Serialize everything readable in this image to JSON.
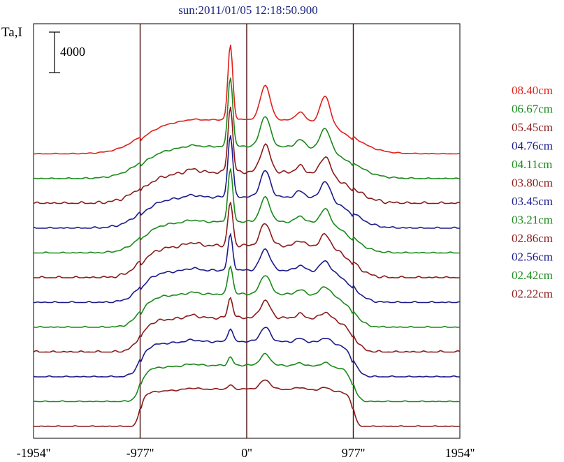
{
  "chart_data": {
    "type": "line",
    "title": "sun:2011/01/05 12:18:50.900",
    "ylabel": "Ta,I",
    "scale_bar_label": "4000",
    "x_ticks": [
      {
        "value": -1954,
        "label": "-1954''"
      },
      {
        "value": -977,
        "label": "-977''"
      },
      {
        "value": 0,
        "label": "0''"
      },
      {
        "value": 977,
        "label": "977''"
      },
      {
        "value": 1954,
        "label": "1954''"
      }
    ],
    "xlim": [
      -1954,
      1954
    ],
    "vertical_lines": [
      -977,
      0,
      977
    ],
    "series": [
      {
        "name": "02.22cm",
        "color": "#8b1a1a",
        "peak": 400,
        "bump": 900,
        "east": 300,
        "plateau": 3700,
        "jag": 0.5
      },
      {
        "name": "02.42cm",
        "color": "#1a8a1a",
        "peak": 800,
        "bump": 1100,
        "east": 400,
        "plateau": 3600,
        "jag": 0.6
      },
      {
        "name": "02.56cm",
        "color": "#1a1a8b",
        "peak": 1300,
        "bump": 1400,
        "east": 500,
        "plateau": 3500,
        "jag": 0.7
      },
      {
        "name": "02.86cm",
        "color": "#8b1a1a",
        "peak": 2000,
        "bump": 1700,
        "east": 700,
        "plateau": 3400,
        "jag": 1.0
      },
      {
        "name": "03.21cm",
        "color": "#1a8a1a",
        "peak": 2800,
        "bump": 1900,
        "east": 900,
        "plateau": 3300,
        "jag": 0.7
      },
      {
        "name": "03.45cm",
        "color": "#1a1a8b",
        "peak": 3500,
        "bump": 2100,
        "east": 1100,
        "plateau": 3200,
        "jag": 0.8
      },
      {
        "name": "03.80cm",
        "color": "#8b1a1a",
        "peak": 4300,
        "bump": 2200,
        "east": 1300,
        "plateau": 3200,
        "jag": 1.1
      },
      {
        "name": "04.11cm",
        "color": "#1a8a1a",
        "peak": 5200,
        "bump": 2400,
        "east": 1500,
        "plateau": 3100,
        "jag": 0.7
      },
      {
        "name": "04.76cm",
        "color": "#1a1a8b",
        "peak": 6200,
        "bump": 2600,
        "east": 1800,
        "plateau": 3100,
        "jag": 0.8
      },
      {
        "name": "05.45cm",
        "color": "#8b1a1a",
        "peak": 6500,
        "bump": 2700,
        "east": 1900,
        "plateau": 3100,
        "jag": 1.2
      },
      {
        "name": "06.67cm",
        "color": "#1a8a1a",
        "peak": 6900,
        "bump": 3000,
        "east": 2200,
        "plateau": 3200,
        "jag": 0.6
      },
      {
        "name": "08.40cm",
        "color": "#e0201a",
        "peak": 7400,
        "bump": 3400,
        "east": 2800,
        "plateau": 3400,
        "jag": 0.4
      }
    ]
  }
}
